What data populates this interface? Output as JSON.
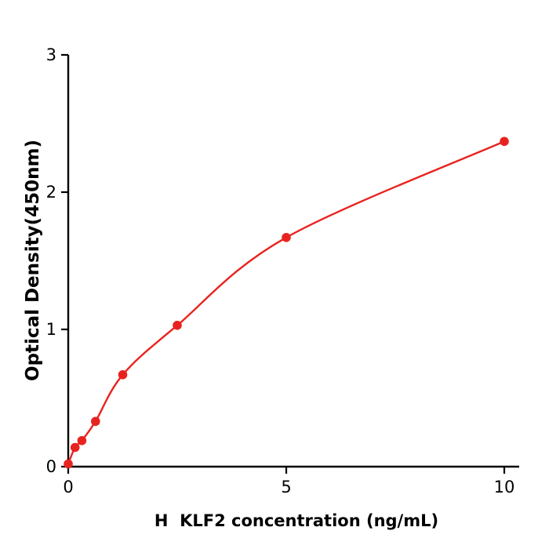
{
  "figure": {
    "background": "#ffffff"
  },
  "chart_data": {
    "type": "scatter",
    "title": "",
    "xlabel": "H  KLF2 concentration (ng/mL)",
    "ylabel": "Optical Density(450nm)",
    "xlim": [
      0,
      10
    ],
    "ylim": [
      0,
      3
    ],
    "x_ticks": [
      0,
      5,
      10
    ],
    "y_ticks": [
      0,
      1,
      2,
      3
    ],
    "grid": false,
    "legend": "none",
    "axis_color": "#000000",
    "series": [
      {
        "name": "H KLF2 standard curve",
        "marker": "circle",
        "line": "smooth-fit",
        "color": "#e8231f",
        "x": [
          0,
          0.156,
          0.3125,
          0.625,
          1.25,
          2.5,
          5,
          10
        ],
        "y": [
          0.02,
          0.14,
          0.19,
          0.33,
          0.67,
          1.03,
          1.67,
          2.37
        ]
      }
    ]
  }
}
